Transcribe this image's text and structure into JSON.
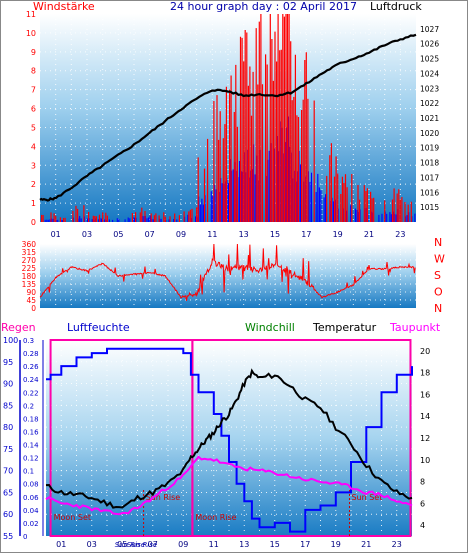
{
  "header": {
    "title": "24 hour graph day : 02 April 2017",
    "left_label": "Windstärke",
    "right_label": "Luftdruck"
  },
  "colors": {
    "wind_bars": "#ff0000",
    "gust_bars": "#0000ff",
    "pressure_line": "#000000",
    "direction_line": "#ff0000",
    "humidity_line": "#0000ff",
    "temperature_line": "#000000",
    "dewpoint_line": "#ff00ff",
    "windchill_label": "#008000",
    "moon_marker": "#ff00aa",
    "sun_marker": "#cc0000",
    "background_top": "#ffffff",
    "background_bottom": "#1a80c8"
  },
  "chart_data": [
    {
      "type": "bar",
      "name": "wind_pressure",
      "title": "24 hour graph day : 02 April 2017",
      "left_axis": {
        "label": "Windstärke",
        "ylim": [
          0,
          11
        ],
        "ticks": [
          "0",
          "1",
          "2",
          "3",
          "4",
          "5",
          "6",
          "7",
          "8",
          "9",
          "10",
          "11"
        ]
      },
      "right_axis": {
        "label": "Luftdruck",
        "ylim": [
          1014,
          1028
        ],
        "ticks": [
          "1015",
          "1016",
          "1017",
          "1018",
          "1019",
          "1020",
          "1021",
          "1022",
          "1023",
          "1024",
          "1025",
          "1026",
          "1027"
        ]
      },
      "x_ticks": [
        "01",
        "03",
        "05",
        "07",
        "09",
        "11",
        "13",
        "15",
        "17",
        "19",
        "21",
        "23"
      ],
      "pressure": {
        "x": [
          0,
          0.5,
          1,
          2,
          3,
          4,
          5,
          6,
          7,
          8,
          9,
          10,
          11,
          12,
          13,
          14,
          15,
          16,
          17,
          18,
          19,
          20,
          21,
          22,
          23,
          24
        ],
        "y": [
          1015.5,
          1015.5,
          1015.6,
          1016.3,
          1017.1,
          1017.8,
          1018.5,
          1019.2,
          1020.0,
          1020.8,
          1021.6,
          1022.3,
          1022.9,
          1022.8,
          1022.5,
          1022.6,
          1022.5,
          1022.7,
          1023.3,
          1024.0,
          1024.6,
          1025.0,
          1025.4,
          1025.9,
          1026.3,
          1026.6
        ]
      },
      "wind_intensity": [
        0.3,
        0.2,
        0.5,
        0.3,
        0.3,
        0.4,
        0.5,
        0.3,
        0.3,
        0.6,
        2.5,
        4.5,
        5.5,
        6.0,
        6.5,
        8.0,
        6.0,
        4.5,
        2.5,
        1.5,
        1.2,
        1.0,
        1.0,
        0.8
      ]
    },
    {
      "type": "line",
      "name": "wind_direction",
      "left_ticks": [
        "0",
        "45",
        "90",
        "135",
        "180",
        "225",
        "270",
        "315",
        "360"
      ],
      "ylim": [
        0,
        360
      ],
      "compass": [
        "N",
        "W",
        "S",
        "O",
        "N"
      ],
      "x": [
        0,
        1,
        2,
        3,
        4,
        5,
        6,
        7,
        8,
        9,
        10,
        11,
        12,
        13,
        14,
        15,
        16,
        17,
        18,
        19,
        20,
        21,
        22,
        23,
        24
      ],
      "y": [
        60,
        170,
        230,
        210,
        250,
        180,
        190,
        200,
        180,
        60,
        80,
        260,
        220,
        230,
        210,
        240,
        200,
        150,
        60,
        90,
        130,
        220,
        220,
        230,
        230
      ]
    },
    {
      "type": "line",
      "name": "climate",
      "labels": [
        "Regen",
        "Luftfeuchte",
        "Windchill",
        "Temperatur",
        "Taupunkt"
      ],
      "rain_axis": {
        "ylim": [
          0,
          0.3
        ],
        "ticks": [
          "0",
          "0.02",
          "0.04",
          "0.06",
          "0.08",
          "0.1",
          "0.12",
          "0.14",
          "0.16",
          "0.18",
          "0.2",
          "0.22",
          "0.24",
          "0.26",
          "0.28",
          "0.3"
        ]
      },
      "humidity_axis": {
        "ylim": [
          55,
          100
        ],
        "ticks": [
          "55",
          "60",
          "65",
          "70",
          "75",
          "80",
          "85",
          "90",
          "95",
          "100"
        ]
      },
      "temp_axis": {
        "ylim": [
          3,
          21
        ],
        "ticks": [
          "4",
          "6",
          "8",
          "10",
          "12",
          "14",
          "16",
          "18",
          "20"
        ]
      },
      "x_ticks": [
        "01",
        "03",
        "05",
        "07",
        "09",
        "11",
        "13",
        "15",
        "17",
        "19",
        "21",
        "23"
      ],
      "humidity": {
        "x": [
          0,
          0.3,
          1,
          2,
          3,
          4,
          5,
          6,
          7,
          8,
          9,
          9.5,
          10,
          11,
          11.5,
          12,
          12.5,
          13,
          13.5,
          14,
          15,
          16,
          17,
          18,
          19,
          20,
          21,
          22,
          23,
          24
        ],
        "y": [
          91,
          92,
          94,
          96,
          97,
          98,
          98,
          98,
          98,
          98,
          97,
          92,
          88,
          83,
          78,
          72,
          67,
          63,
          59,
          57,
          58,
          56,
          61,
          62,
          65,
          72,
          80,
          88,
          92,
          94
        ]
      },
      "temperature": {
        "x": [
          0,
          1,
          2,
          3,
          4,
          5,
          6,
          7,
          8,
          9,
          9.5,
          10,
          10.5,
          11,
          11.5,
          12,
          12.5,
          13,
          13.5,
          14,
          15,
          16,
          17,
          18,
          19,
          20,
          21,
          22,
          23,
          24
        ],
        "y": [
          7.6,
          7.0,
          6.8,
          6.5,
          6.0,
          5.6,
          6.5,
          7.0,
          7.8,
          9.0,
          10.2,
          11.0,
          11.8,
          12.5,
          13.5,
          14.2,
          15.5,
          17.0,
          18.0,
          17.5,
          17.8,
          16.8,
          15.5,
          14.8,
          13.0,
          11.5,
          9.5,
          8.0,
          7.0,
          6.5
        ]
      },
      "dewpoint": {
        "x": [
          0,
          1,
          2,
          3,
          4,
          5,
          6,
          7,
          8,
          9,
          10,
          11,
          12,
          13,
          14,
          15,
          16,
          17,
          18,
          19,
          20,
          21,
          22,
          23,
          24
        ],
        "y": [
          6.5,
          6.0,
          5.8,
          5.5,
          5.2,
          5.0,
          5.6,
          6.5,
          7.5,
          8.5,
          10.2,
          10.0,
          9.5,
          9.2,
          9.0,
          8.8,
          8.5,
          8.2,
          8.0,
          7.8,
          7.5,
          7.0,
          6.8,
          6.2,
          5.8
        ]
      },
      "events": [
        {
          "label": "Moon Set",
          "hour": 0.3,
          "kind": "moon"
        },
        {
          "label": "Sun Rise",
          "hour": 6.4,
          "kind": "sun"
        },
        {
          "label": "Moon Rise",
          "hour": 9.6,
          "kind": "moon"
        },
        {
          "label": "Sun Set",
          "hour": 19.9,
          "kind": "sun"
        }
      ],
      "bottom_marks": [
        {
          "label": "Sun Rise",
          "hour": 5.5
        },
        {
          "label": "Sun Rise",
          "hour": 6.3
        }
      ]
    }
  ]
}
